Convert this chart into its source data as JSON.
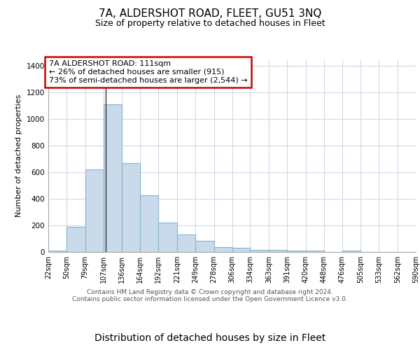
{
  "title": "7A, ALDERSHOT ROAD, FLEET, GU51 3NQ",
  "subtitle": "Size of property relative to detached houses in Fleet",
  "xlabel": "Distribution of detached houses by size in Fleet",
  "ylabel": "Number of detached properties",
  "bar_edges": [
    22,
    50,
    79,
    107,
    136,
    164,
    192,
    221,
    249,
    278,
    306,
    334,
    363,
    391,
    420,
    448,
    476,
    505,
    533,
    562,
    590
  ],
  "bar_heights": [
    10,
    190,
    620,
    1110,
    670,
    425,
    220,
    130,
    85,
    35,
    30,
    18,
    15,
    10,
    8,
    2,
    12,
    0,
    0,
    0
  ],
  "bar_color": "#c9daea",
  "bar_edge_color": "#8ab4cc",
  "property_line_x": 111,
  "annotation_text": "7A ALDERSHOT ROAD: 111sqm\n← 26% of detached houses are smaller (915)\n73% of semi-detached houses are larger (2,544) →",
  "annotation_box_color": "#ffffff",
  "annotation_box_edge_color": "#cc0000",
  "ylim": [
    0,
    1450
  ],
  "yticks": [
    0,
    200,
    400,
    600,
    800,
    1000,
    1200,
    1400
  ],
  "plot_bg": "#ffffff",
  "fig_bg": "#ffffff",
  "grid_color": "#d0d8e8",
  "footer": "Contains HM Land Registry data © Crown copyright and database right 2024.\nContains public sector information licensed under the Open Government Licence v3.0.",
  "title_fontsize": 11,
  "subtitle_fontsize": 9,
  "xlabel_fontsize": 9,
  "ylabel_fontsize": 8,
  "tick_fontsize": 7,
  "footer_fontsize": 6.5
}
